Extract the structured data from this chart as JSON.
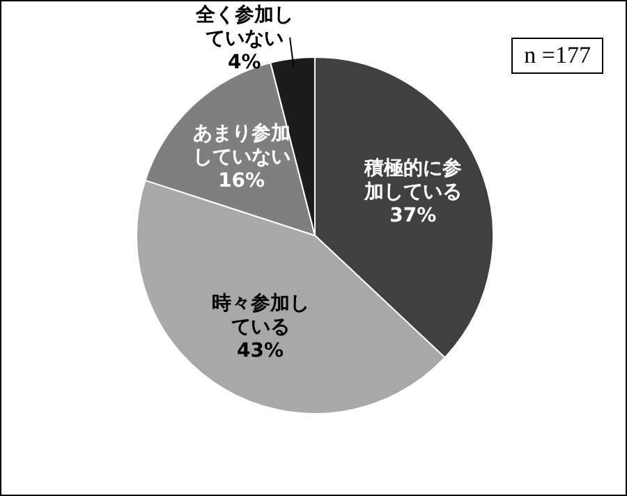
{
  "chart_data": {
    "type": "pie",
    "categories": [
      "積極的に参加している",
      "時々参加している",
      "あまり参加していない",
      "全く参加していない"
    ],
    "values": [
      37,
      43,
      16,
      4
    ],
    "colors": [
      "#404040",
      "#a8a8a8",
      "#7f7f7f",
      "#1c1c1c"
    ],
    "value_labels": [
      "37%",
      "43%",
      "16%",
      "4%"
    ],
    "annotations": [
      "n =177"
    ]
  }
}
